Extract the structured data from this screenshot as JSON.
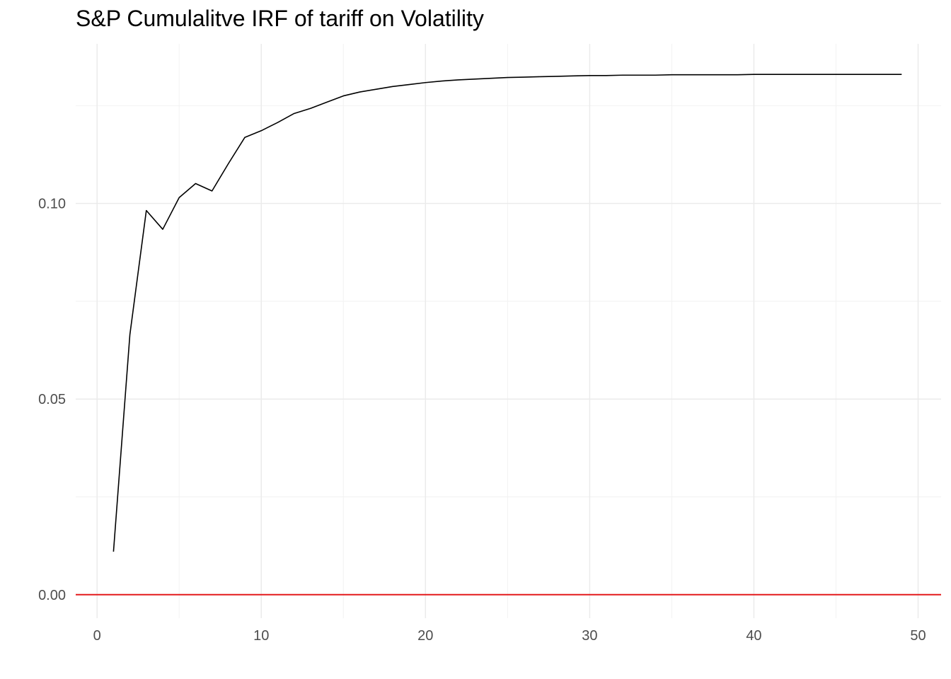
{
  "chart_data": {
    "type": "line",
    "title": "S&P Cumulalitve IRF of tariff on Volatility",
    "xlabel": "",
    "ylabel": "",
    "xlim": [
      -1.3,
      51.4
    ],
    "ylim": [
      -0.006,
      0.1408
    ],
    "grid": true,
    "x_ticks": [
      0,
      10,
      20,
      30,
      40,
      50
    ],
    "x_tick_labels": [
      "0",
      "10",
      "20",
      "30",
      "40",
      "50"
    ],
    "y_ticks": [
      0.0,
      0.05,
      0.1
    ],
    "y_tick_labels": [
      "0.00",
      "0.05",
      "0.10"
    ],
    "reference_line": {
      "y": 0.0,
      "color": "#e41a1c"
    },
    "series": [
      {
        "color": "#000000",
        "x": [
          1,
          2,
          3,
          4,
          5,
          6,
          7,
          8,
          9,
          10,
          11,
          12,
          13,
          14,
          15,
          16,
          17,
          18,
          19,
          20,
          21,
          22,
          23,
          24,
          25,
          26,
          27,
          28,
          29,
          30,
          31,
          32,
          33,
          34,
          35,
          36,
          37,
          38,
          39,
          40,
          41,
          42,
          43,
          44,
          45,
          46,
          47,
          48,
          49
        ],
        "y": [
          0.011,
          0.0665,
          0.0982,
          0.0934,
          0.1015,
          0.1051,
          0.1032,
          0.1102,
          0.1169,
          0.1186,
          0.1207,
          0.123,
          0.1243,
          0.1259,
          0.1275,
          0.1285,
          0.1292,
          0.1299,
          0.1304,
          0.1309,
          0.1313,
          0.1316,
          0.1318,
          0.132,
          0.1322,
          0.1323,
          0.1324,
          0.1325,
          0.1326,
          0.1327,
          0.1327,
          0.1328,
          0.1328,
          0.1328,
          0.1329,
          0.1329,
          0.1329,
          0.1329,
          0.1329,
          0.133,
          0.133,
          0.133,
          0.133,
          0.133,
          0.133,
          0.133,
          0.133,
          0.133,
          0.133
        ]
      }
    ]
  }
}
